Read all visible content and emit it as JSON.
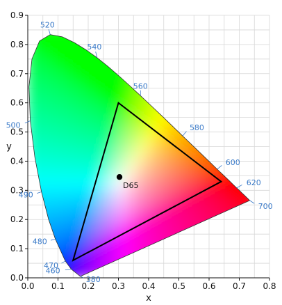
{
  "chart_data": {
    "type": "scatter",
    "xlabel": "x",
    "ylabel": "y",
    "xlim": [
      0.0,
      0.8
    ],
    "ylim": [
      0.0,
      0.9
    ],
    "x_ticks": [
      "0.0",
      "0.1",
      "0.2",
      "0.3",
      "0.4",
      "0.5",
      "0.6",
      "0.7",
      "0.8"
    ],
    "y_ticks": [
      "0.0",
      "0.1",
      "0.2",
      "0.3",
      "0.4",
      "0.5",
      "0.6",
      "0.7",
      "0.8",
      "0.9"
    ],
    "x_tick_values": [
      0.0,
      0.1,
      0.2,
      0.3,
      0.4,
      0.5,
      0.6,
      0.7,
      0.8
    ],
    "y_tick_values": [
      0.0,
      0.1,
      0.2,
      0.3,
      0.4,
      0.5,
      0.6,
      0.7,
      0.8,
      0.9
    ],
    "grid": true,
    "grid_step": 0.05,
    "spectral_locus": [
      [
        0.1741,
        0.005
      ],
      [
        0.144,
        0.0297
      ],
      [
        0.1241,
        0.0578
      ],
      [
        0.0913,
        0.1327
      ],
      [
        0.0687,
        0.2007
      ],
      [
        0.0454,
        0.295
      ],
      [
        0.0235,
        0.4127
      ],
      [
        0.0082,
        0.5384
      ],
      [
        0.0039,
        0.6548
      ],
      [
        0.0139,
        0.7502
      ],
      [
        0.0389,
        0.812
      ],
      [
        0.0743,
        0.8338
      ],
      [
        0.1142,
        0.8262
      ],
      [
        0.1547,
        0.8059
      ],
      [
        0.1929,
        0.7816
      ],
      [
        0.2296,
        0.7543
      ],
      [
        0.2658,
        0.7243
      ],
      [
        0.3016,
        0.6923
      ],
      [
        0.3373,
        0.6589
      ],
      [
        0.3731,
        0.6245
      ],
      [
        0.4087,
        0.5896
      ],
      [
        0.4441,
        0.5547
      ],
      [
        0.4788,
        0.5202
      ],
      [
        0.5125,
        0.4866
      ],
      [
        0.5448,
        0.4544
      ],
      [
        0.5752,
        0.4242
      ],
      [
        0.6029,
        0.3965
      ],
      [
        0.627,
        0.3725
      ],
      [
        0.6482,
        0.3514
      ],
      [
        0.6658,
        0.334
      ],
      [
        0.6801,
        0.3197
      ],
      [
        0.6915,
        0.3083
      ],
      [
        0.7006,
        0.2993
      ],
      [
        0.7079,
        0.292
      ],
      [
        0.714,
        0.2859
      ],
      [
        0.7347,
        0.2653
      ]
    ],
    "wavelength_labels": [
      {
        "label": "380",
        "x": 0.1741,
        "y": 0.005
      },
      {
        "label": "460",
        "x": 0.144,
        "y": 0.0297
      },
      {
        "label": "470",
        "x": 0.1241,
        "y": 0.0578
      },
      {
        "label": "480",
        "x": 0.0913,
        "y": 0.1327
      },
      {
        "label": "490",
        "x": 0.0454,
        "y": 0.295
      },
      {
        "label": "500",
        "x": 0.0082,
        "y": 0.5384
      },
      {
        "label": "520",
        "x": 0.0743,
        "y": 0.8338
      },
      {
        "label": "540",
        "x": 0.2296,
        "y": 0.7543
      },
      {
        "label": "560",
        "x": 0.3731,
        "y": 0.6245
      },
      {
        "label": "580",
        "x": 0.5125,
        "y": 0.4866
      },
      {
        "label": "600",
        "x": 0.627,
        "y": 0.3725
      },
      {
        "label": "620",
        "x": 0.6915,
        "y": 0.3083
      },
      {
        "label": "700",
        "x": 0.7347,
        "y": 0.2653
      }
    ],
    "gamut_triangle": [
      [
        0.64,
        0.33
      ],
      [
        0.3,
        0.6
      ],
      [
        0.15,
        0.06
      ]
    ],
    "white_point": {
      "label": "D65",
      "x": 0.3127,
      "y": 0.329
    }
  }
}
